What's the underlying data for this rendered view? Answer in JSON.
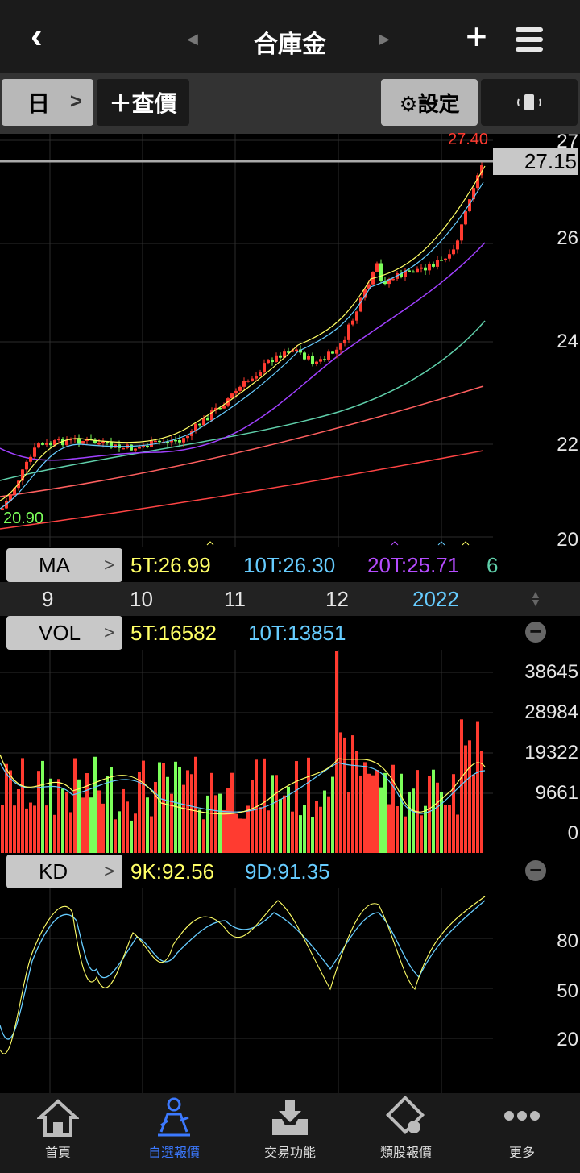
{
  "header": {
    "title": "合庫金",
    "back_icon": "chevron-left-icon",
    "add_icon": "plus-icon",
    "menu_icon": "hamburger-icon"
  },
  "toolbar": {
    "period": "日",
    "query": "＋查價",
    "settings": "⚙設定",
    "rotate_icon": "rotate-phone-icon"
  },
  "price_chart": {
    "high_label": "27.40",
    "low_label": "20.90",
    "current_price": "27.15",
    "y_ticks": [
      "27",
      "26",
      "24",
      "22",
      "20"
    ]
  },
  "ma": {
    "chip": "MA",
    "ma5": "5T:26.99",
    "ma10": "10T:26.30",
    "ma20": "20T:25.71",
    "more": "6"
  },
  "x_axis": {
    "labels": [
      "9",
      "10",
      "11",
      "12",
      "2022"
    ]
  },
  "vol": {
    "chip": "VOL",
    "v5": "5T:16582",
    "v10": "10T:13851",
    "y_ticks": [
      "38645",
      "28984",
      "19322",
      "9661",
      "0"
    ]
  },
  "kd": {
    "chip": "KD",
    "k": "9K:92.56",
    "d": "9D:91.35",
    "y_ticks": [
      "80",
      "50",
      "20"
    ]
  },
  "colors": {
    "up": "#ff3b30",
    "down": "#7cff5a",
    "ma5": "#ffff66",
    "ma10": "#66ccff",
    "ma20": "#b54cff",
    "accent": "#3c79ff"
  },
  "nav": [
    {
      "label": "首頁",
      "icon": "home-icon"
    },
    {
      "label": "自選報價",
      "icon": "watchlist-icon",
      "active": true
    },
    {
      "label": "交易功能",
      "icon": "trade-download-icon"
    },
    {
      "label": "類股報價",
      "icon": "sector-quote-icon"
    },
    {
      "label": "更多",
      "icon": "more-dots-icon"
    }
  ]
}
